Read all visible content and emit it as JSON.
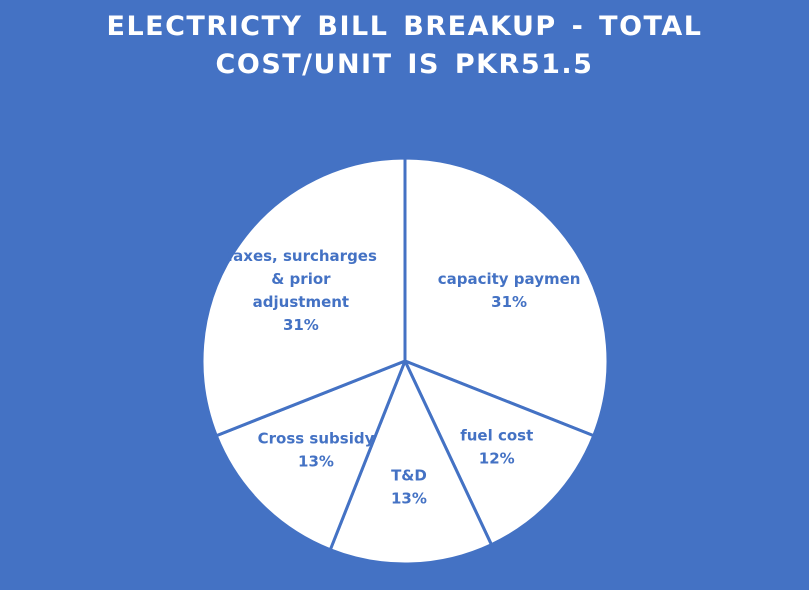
{
  "colors": {
    "background": "#4472C4",
    "slice_fill": "#FFFFFF",
    "slice_border": "#4472C4",
    "label_text": "#4472C4",
    "title_text": "#FFFFFF"
  },
  "chart_data": {
    "type": "pie",
    "title": "ELECTRICTY BILL BREAKUP - TOTAL COST/UNIT IS PKR51.5",
    "title_lines": [
      "ELECTRICTY  BILL BREAKUP - TOTAL",
      "COST/UNIT  IS  PKR51.5"
    ],
    "slices": [
      {
        "label": "capacity payment",
        "label_lines": [
          "capacity paymen"
        ],
        "value": 31,
        "value_label": "31%"
      },
      {
        "label": "fuel cost",
        "label_lines": [
          "fuel cost"
        ],
        "value": 12,
        "value_label": "12%"
      },
      {
        "label": "T&D",
        "label_lines": [
          "T&D"
        ],
        "value": 13,
        "value_label": "13%"
      },
      {
        "label": "Cross subsidy",
        "label_lines": [
          "Cross subsidy"
        ],
        "value": 13,
        "value_label": "13%"
      },
      {
        "label": "Taxes, surcharges & prior adjustment",
        "label_lines": [
          "Taxes, surcharges",
          "& prior",
          "adjustment"
        ],
        "value": 31,
        "value_label": "31%"
      }
    ],
    "legend": "none"
  }
}
